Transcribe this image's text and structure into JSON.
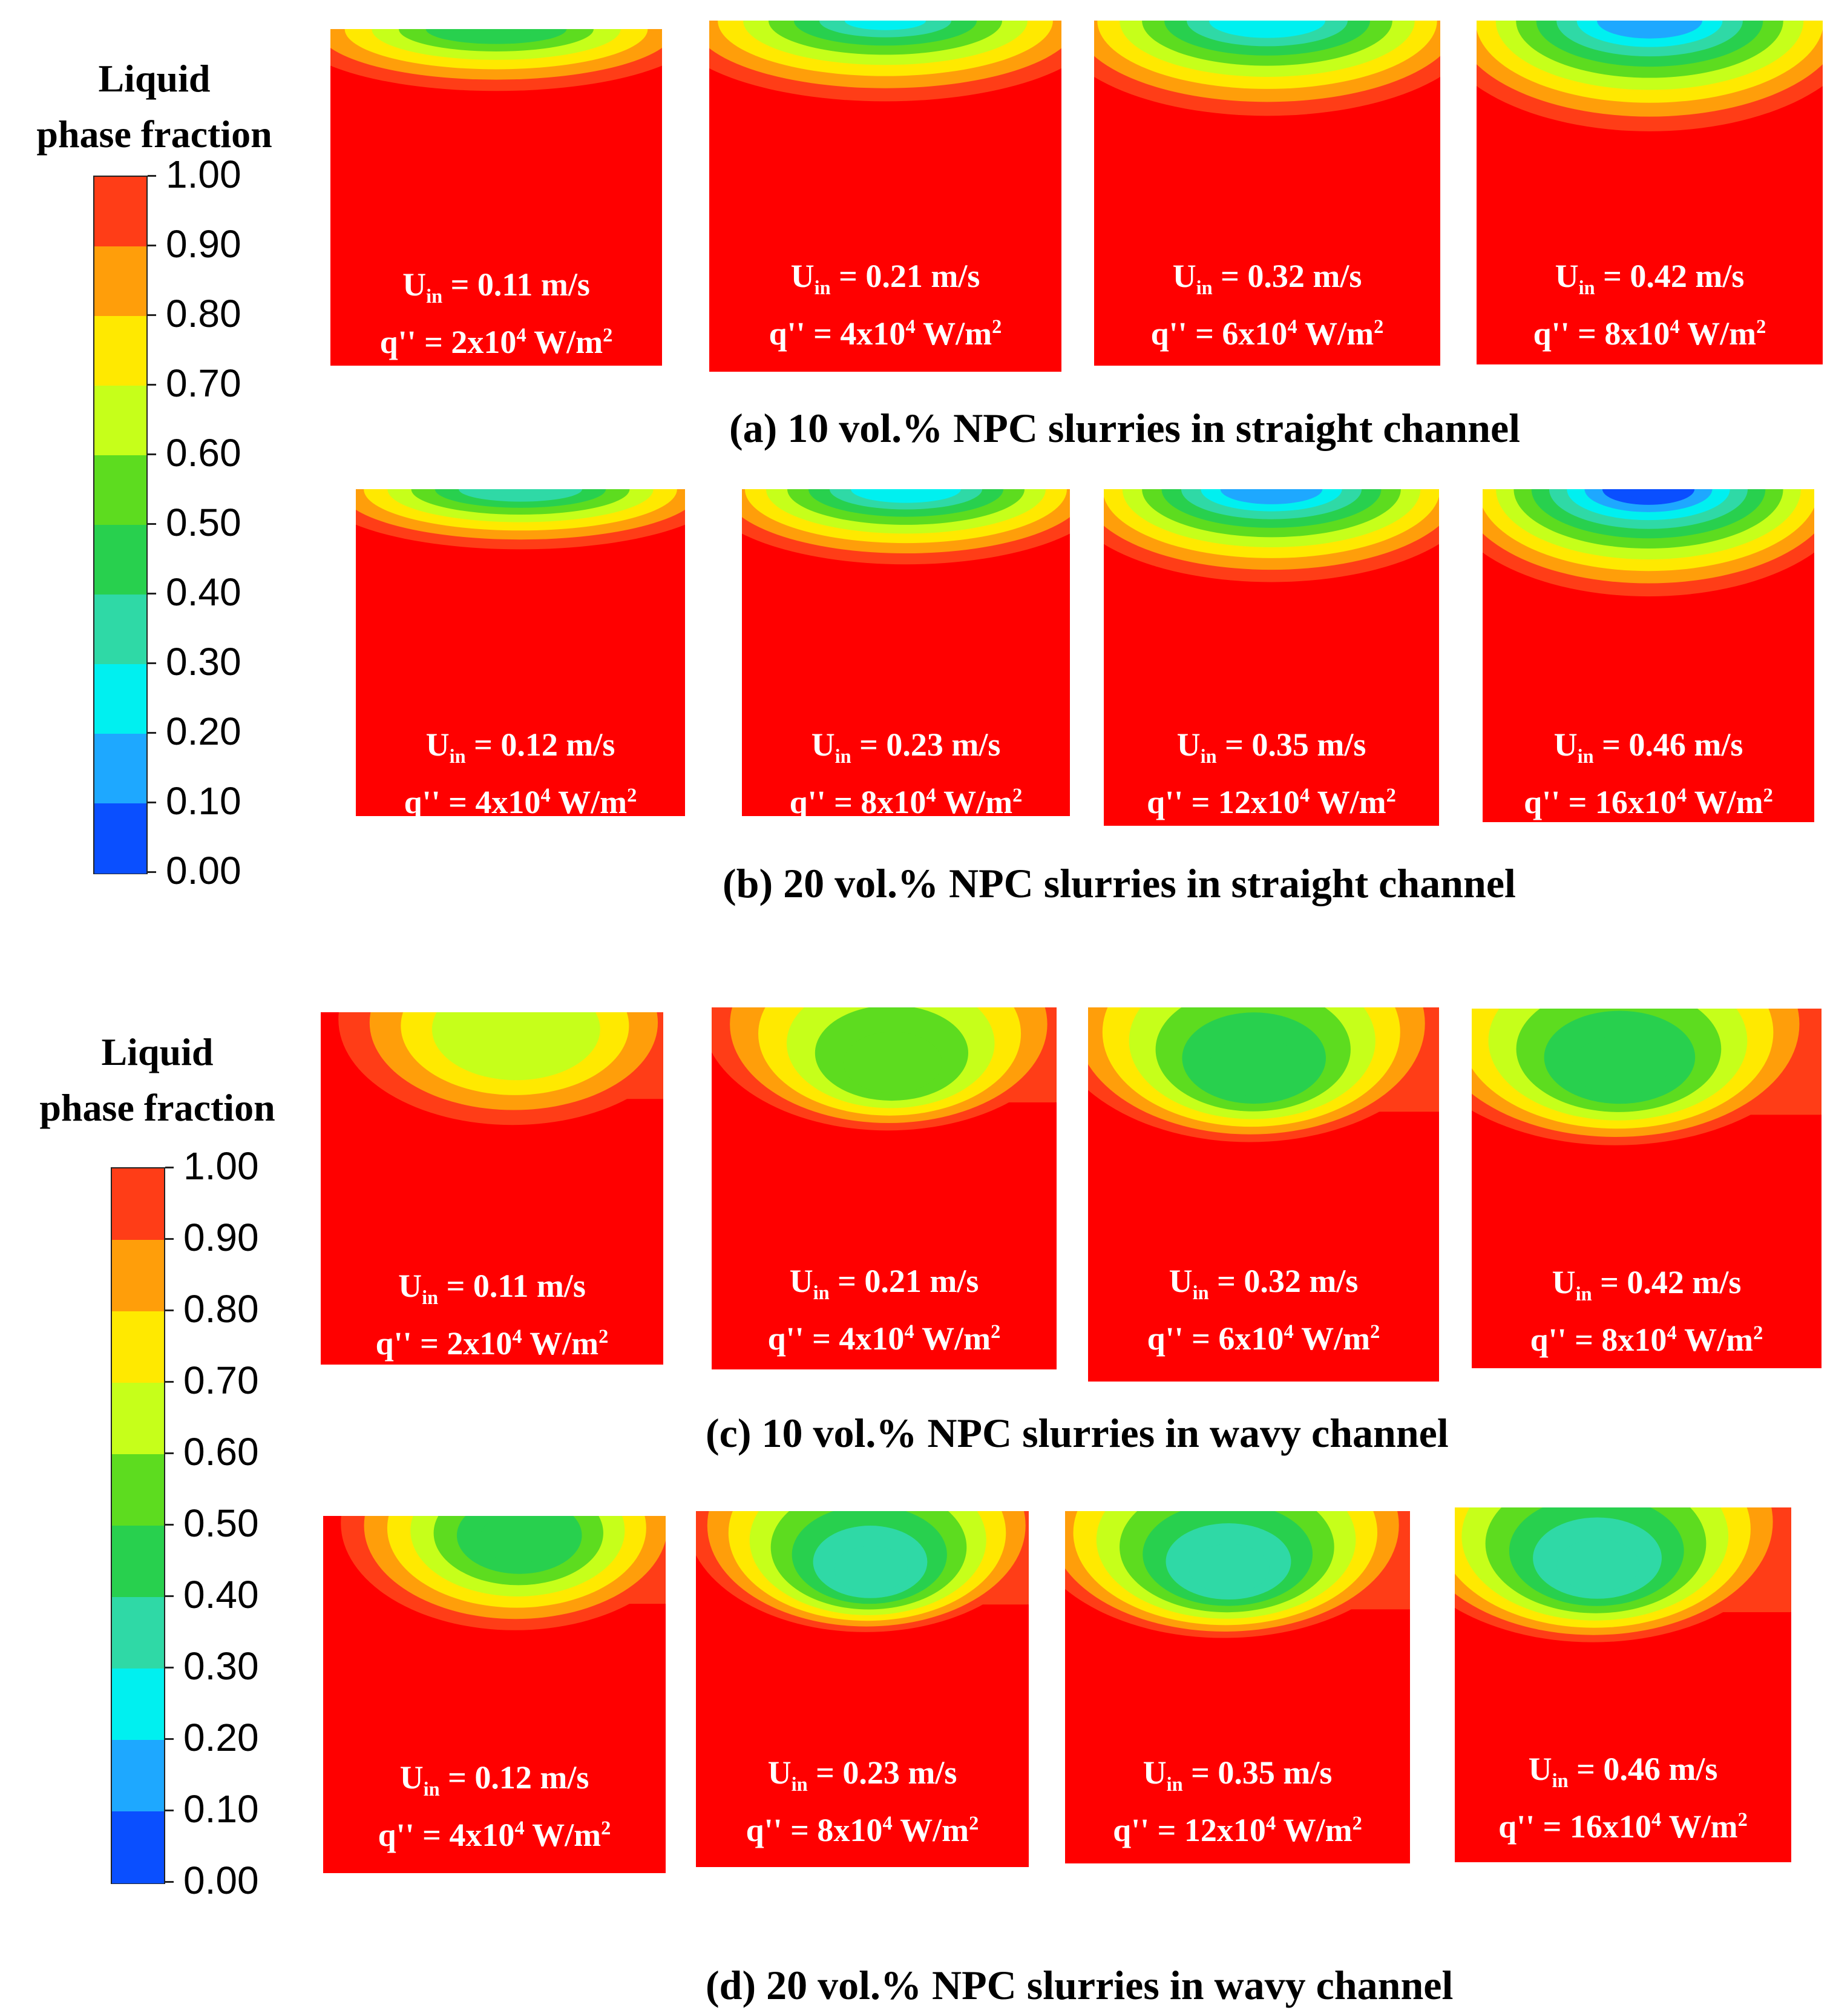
{
  "chart_data": {
    "type": "contour",
    "colorbar": {
      "title_line1": "Liquid",
      "title_line2": "phase fraction",
      "ticks": [
        "1.00",
        "0.90",
        "0.80",
        "0.70",
        "0.60",
        "0.50",
        "0.40",
        "0.30",
        "0.20",
        "0.10",
        "0.00"
      ],
      "colors": [
        "#ff3d17",
        "#ff9e0a",
        "#ffe900",
        "#c6ff1a",
        "#5ddc1f",
        "#28d04e",
        "#2fd9a6",
        "#00f0f0",
        "#1ea8ff",
        "#0a4fff"
      ]
    },
    "groups": [
      {
        "caption": "(a) 10 vol.% NPC slurries in straight channel",
        "cases": [
          {
            "uin_label": "U",
            "uin_sub": "in",
            "uin_value": " = 0.11 m/s",
            "q_prefix": "q'' = 2x10",
            "q_exp": "4",
            "q_unit": " W/m",
            "q_unit_exp": "2",
            "min_fraction": 0.45
          },
          {
            "uin_label": "U",
            "uin_sub": "in",
            "uin_value": " = 0.21 m/s",
            "q_prefix": "q'' = 4x10",
            "q_exp": "4",
            "q_unit": " W/m",
            "q_unit_exp": "2",
            "min_fraction": 0.28
          },
          {
            "uin_label": "U",
            "uin_sub": "in",
            "uin_value": " = 0.32 m/s",
            "q_prefix": "q'' = 6x10",
            "q_exp": "4",
            "q_unit": " W/m",
            "q_unit_exp": "2",
            "min_fraction": 0.22
          },
          {
            "uin_label": "U",
            "uin_sub": "in",
            "uin_value": " = 0.42 m/s",
            "q_prefix": "q'' = 8x10",
            "q_exp": "4",
            "q_unit": " W/m",
            "q_unit_exp": "2",
            "min_fraction": 0.15
          }
        ]
      },
      {
        "caption": "(b) 20 vol.% NPC slurries in straight channel",
        "cases": [
          {
            "uin_label": "U",
            "uin_sub": "in",
            "uin_value": " = 0.12 m/s",
            "q_prefix": "q'' = 4x10",
            "q_exp": "4",
            "q_unit": " W/m",
            "q_unit_exp": "2",
            "min_fraction": 0.35
          },
          {
            "uin_label": "U",
            "uin_sub": "in",
            "uin_value": " = 0.23 m/s",
            "q_prefix": "q'' = 8x10",
            "q_exp": "4",
            "q_unit": " W/m",
            "q_unit_exp": "2",
            "min_fraction": 0.25
          },
          {
            "uin_label": "U",
            "uin_sub": "in",
            "uin_value": " = 0.35 m/s",
            "q_prefix": "q'' = 12x10",
            "q_exp": "4",
            "q_unit": " W/m",
            "q_unit_exp": "2",
            "min_fraction": 0.15
          },
          {
            "uin_label": "U",
            "uin_sub": "in",
            "uin_value": " = 0.46 m/s",
            "q_prefix": "q'' = 16x10",
            "q_exp": "4",
            "q_unit": " W/m",
            "q_unit_exp": "2",
            "min_fraction": 0.05
          }
        ]
      },
      {
        "caption": "(c) 10 vol.% NPC slurries in wavy channel",
        "cases": [
          {
            "uin_label": "U",
            "uin_sub": "in",
            "uin_value": " = 0.11 m/s",
            "q_prefix": "q'' = 2x10",
            "q_exp": "4",
            "q_unit": " W/m",
            "q_unit_exp": "2",
            "min_fraction": 0.65
          },
          {
            "uin_label": "U",
            "uin_sub": "in",
            "uin_value": " = 0.21 m/s",
            "q_prefix": "q'' = 4x10",
            "q_exp": "4",
            "q_unit": " W/m",
            "q_unit_exp": "2",
            "min_fraction": 0.55
          },
          {
            "uin_label": "U",
            "uin_sub": "in",
            "uin_value": " = 0.32 m/s",
            "q_prefix": "q'' = 6x10",
            "q_exp": "4",
            "q_unit": " W/m",
            "q_unit_exp": "2",
            "min_fraction": 0.45
          },
          {
            "uin_label": "U",
            "uin_sub": "in",
            "uin_value": " = 0.42 m/s",
            "q_prefix": "q'' = 8x10",
            "q_exp": "4",
            "q_unit": " W/m",
            "q_unit_exp": "2",
            "min_fraction": 0.45
          }
        ]
      },
      {
        "caption": "(d) 20 vol.% NPC slurries in wavy channel",
        "cases": [
          {
            "uin_label": "U",
            "uin_sub": "in",
            "uin_value": " = 0.12 m/s",
            "q_prefix": "q'' = 4x10",
            "q_exp": "4",
            "q_unit": " W/m",
            "q_unit_exp": "2",
            "min_fraction": 0.45
          },
          {
            "uin_label": "U",
            "uin_sub": "in",
            "uin_value": " = 0.23 m/s",
            "q_prefix": "q'' = 8x10",
            "q_exp": "4",
            "q_unit": " W/m",
            "q_unit_exp": "2",
            "min_fraction": 0.35
          },
          {
            "uin_label": "U",
            "uin_sub": "in",
            "uin_value": " = 0.35 m/s",
            "q_prefix": "q'' = 12x10",
            "q_exp": "4",
            "q_unit": " W/m",
            "q_unit_exp": "2",
            "min_fraction": 0.35
          },
          {
            "uin_label": "U",
            "uin_sub": "in",
            "uin_value": " = 0.46 m/s",
            "q_prefix": "q'' = 16x10",
            "q_exp": "4",
            "q_unit": " W/m",
            "q_unit_exp": "2",
            "min_fraction": 0.35
          }
        ]
      }
    ]
  }
}
